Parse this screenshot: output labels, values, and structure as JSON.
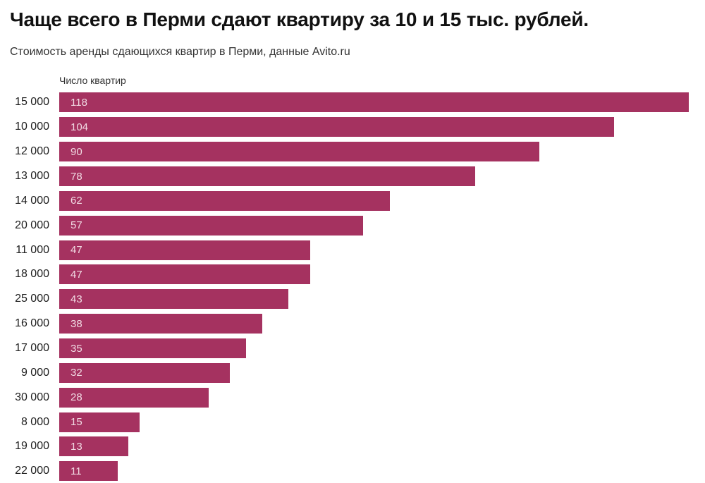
{
  "chart_data": {
    "type": "bar",
    "orientation": "horizontal",
    "title": "Чаще всего в Перми сдают квартиру за 10 и 15 тыс. рублей.",
    "subtitle": "Стоимость аренды сдающихся квартир в Перми, данные Avito.ru",
    "axis_label": "Число квартир",
    "categories": [
      "15 000",
      "10 000",
      "12 000",
      "13 000",
      "14 000",
      "20 000",
      "11 000",
      "18 000",
      "25 000",
      "16 000",
      "17 000",
      "9 000",
      "30 000",
      "8 000",
      "19 000",
      "22 000"
    ],
    "values": [
      118,
      104,
      90,
      78,
      62,
      57,
      47,
      47,
      43,
      38,
      35,
      32,
      28,
      15,
      13,
      11
    ],
    "xlim": [
      0,
      118
    ],
    "grid": false,
    "legend": false,
    "value_labels": "inside-start",
    "bar_color": "#a53260",
    "value_label_color": "#f1dae3",
    "category_label_color": "#1d1d1d",
    "title_color": "#111111",
    "subtitle_color": "#333333",
    "background_color": "#ffffff"
  }
}
